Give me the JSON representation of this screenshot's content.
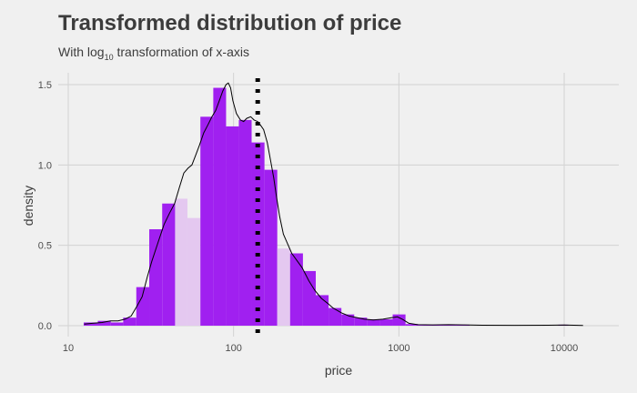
{
  "chart_data": {
    "type": "histogram",
    "title": "Transformed distribution of price",
    "subtitle": {
      "prefix": "With log",
      "subscript": "10",
      "suffix": " transformation of x-axis"
    },
    "xlabel": "price",
    "ylabel": "density",
    "x_scale": "log10",
    "xlim": [
      10,
      15000
    ],
    "ylim": [
      0,
      1.55
    ],
    "x_ticks": [
      {
        "value": 10,
        "label": "10"
      },
      {
        "value": 100,
        "label": "100"
      },
      {
        "value": 1000,
        "label": "1000"
      },
      {
        "value": 10000,
        "label": "10000"
      }
    ],
    "y_ticks": [
      {
        "value": 0.0,
        "label": "0.0"
      },
      {
        "value": 0.5,
        "label": "0.5"
      },
      {
        "value": 1.0,
        "label": "1.0"
      },
      {
        "value": 1.5,
        "label": "1.5"
      }
    ],
    "bins": [
      {
        "x0": 12.4,
        "x1": 15.1,
        "density": 0.02,
        "shade": "dark"
      },
      {
        "x0": 15.1,
        "x1": 18.1,
        "density": 0.03,
        "shade": "dark"
      },
      {
        "x0": 18.1,
        "x1": 21.5,
        "density": 0.02,
        "shade": "dark"
      },
      {
        "x0": 21.5,
        "x1": 25.8,
        "density": 0.05,
        "shade": "dark"
      },
      {
        "x0": 25.8,
        "x1": 30.9,
        "density": 0.24,
        "shade": "dark"
      },
      {
        "x0": 30.9,
        "x1": 37.0,
        "density": 0.6,
        "shade": "dark"
      },
      {
        "x0": 37.0,
        "x1": 44.3,
        "density": 0.76,
        "shade": "dark"
      },
      {
        "x0": 44.3,
        "x1": 52.6,
        "density": 0.79,
        "shade": "light"
      },
      {
        "x0": 52.6,
        "x1": 63.0,
        "density": 0.67,
        "shade": "light"
      },
      {
        "x0": 63.0,
        "x1": 75.4,
        "density": 1.3,
        "shade": "dark"
      },
      {
        "x0": 75.4,
        "x1": 90.1,
        "density": 1.48,
        "shade": "dark"
      },
      {
        "x0": 90.1,
        "x1": 107.6,
        "density": 1.24,
        "shade": "dark"
      },
      {
        "x0": 107.6,
        "x1": 128.6,
        "density": 1.28,
        "shade": "dark"
      },
      {
        "x0": 128.6,
        "x1": 153.8,
        "density": 1.14,
        "shade": "dark"
      },
      {
        "x0": 153.8,
        "x1": 183.8,
        "density": 0.97,
        "shade": "dark"
      },
      {
        "x0": 183.8,
        "x1": 219.8,
        "density": 0.48,
        "shade": "light"
      },
      {
        "x0": 219.8,
        "x1": 262.8,
        "density": 0.45,
        "shade": "dark"
      },
      {
        "x0": 262.8,
        "x1": 314.2,
        "density": 0.34,
        "shade": "dark"
      },
      {
        "x0": 314.2,
        "x1": 375.6,
        "density": 0.19,
        "shade": "dark"
      },
      {
        "x0": 375.6,
        "x1": 449.0,
        "density": 0.11,
        "shade": "dark"
      },
      {
        "x0": 449.0,
        "x1": 536.8,
        "density": 0.07,
        "shade": "dark"
      },
      {
        "x0": 536.8,
        "x1": 641.8,
        "density": 0.05,
        "shade": "dark"
      },
      {
        "x0": 641.8,
        "x1": 767.3,
        "density": 0.04,
        "shade": "dark"
      },
      {
        "x0": 767.3,
        "x1": 917.3,
        "density": 0.04,
        "shade": "dark"
      },
      {
        "x0": 917.3,
        "x1": 1096.7,
        "density": 0.07,
        "shade": "dark"
      },
      {
        "x0": 1096.7,
        "x1": 1311.1,
        "density": 0.01,
        "shade": "dark"
      },
      {
        "x0": 1311.1,
        "x1": 1567.5,
        "density": 0.004,
        "shade": "dark"
      },
      {
        "x0": 1567.5,
        "x1": 1874.0,
        "density": 0.004,
        "shade": "dark"
      },
      {
        "x0": 1874.0,
        "x1": 2240.4,
        "density": 0.008,
        "shade": "dark"
      },
      {
        "x0": 2240.4,
        "x1": 2678.5,
        "density": 0.004,
        "shade": "dark"
      },
      {
        "x0": 9200.0,
        "x1": 10600.0,
        "density": 0.006,
        "shade": "dark"
      }
    ],
    "density_curve": [
      [
        12.5,
        0.01
      ],
      [
        14,
        0.015
      ],
      [
        16,
        0.02
      ],
      [
        18,
        0.03
      ],
      [
        20,
        0.03
      ],
      [
        22,
        0.04
      ],
      [
        24,
        0.06
      ],
      [
        26,
        0.12
      ],
      [
        28,
        0.18
      ],
      [
        30,
        0.3
      ],
      [
        32,
        0.4
      ],
      [
        35,
        0.52
      ],
      [
        38,
        0.63
      ],
      [
        41,
        0.7
      ],
      [
        44,
        0.76
      ],
      [
        47,
        0.86
      ],
      [
        50,
        0.95
      ],
      [
        53,
        0.98
      ],
      [
        56,
        1.0
      ],
      [
        59,
        1.06
      ],
      [
        62,
        1.12
      ],
      [
        66,
        1.2
      ],
      [
        70,
        1.25
      ],
      [
        74,
        1.3
      ],
      [
        78,
        1.34
      ],
      [
        82,
        1.4
      ],
      [
        86,
        1.46
      ],
      [
        90,
        1.5
      ],
      [
        93,
        1.51
      ],
      [
        96,
        1.48
      ],
      [
        99,
        1.4
      ],
      [
        104,
        1.32
      ],
      [
        110,
        1.28
      ],
      [
        115,
        1.27
      ],
      [
        120,
        1.29
      ],
      [
        127,
        1.3
      ],
      [
        133,
        1.28
      ],
      [
        140,
        1.27
      ],
      [
        145,
        1.25
      ],
      [
        152,
        1.22
      ],
      [
        160,
        1.14
      ],
      [
        168,
        1.02
      ],
      [
        175,
        0.92
      ],
      [
        182,
        0.8
      ],
      [
        190,
        0.68
      ],
      [
        200,
        0.57
      ],
      [
        210,
        0.52
      ],
      [
        225,
        0.45
      ],
      [
        240,
        0.41
      ],
      [
        260,
        0.36
      ],
      [
        285,
        0.28
      ],
      [
        310,
        0.22
      ],
      [
        340,
        0.17
      ],
      [
        370,
        0.14
      ],
      [
        400,
        0.11
      ],
      [
        450,
        0.08
      ],
      [
        500,
        0.06
      ],
      [
        560,
        0.05
      ],
      [
        620,
        0.04
      ],
      [
        700,
        0.035
      ],
      [
        800,
        0.04
      ],
      [
        900,
        0.05
      ],
      [
        980,
        0.055
      ],
      [
        1050,
        0.04
      ],
      [
        1150,
        0.015
      ],
      [
        1300,
        0.006
      ],
      [
        1600,
        0.005
      ],
      [
        2000,
        0.006
      ],
      [
        2500,
        0.005
      ],
      [
        3200,
        0.003
      ],
      [
        5000,
        0.002
      ],
      [
        8000,
        0.003
      ],
      [
        10000,
        0.004
      ],
      [
        13000,
        0.001
      ]
    ],
    "vline": {
      "x": 140,
      "style": "dotted",
      "color": "#000000"
    },
    "colors": {
      "bar_dark": "#a020f0",
      "bar_light": "#e4c8f0",
      "background": "#f0f0f0",
      "grid": "#d2d2d2",
      "curve": "#000000"
    },
    "grid": true,
    "legend": "none"
  }
}
